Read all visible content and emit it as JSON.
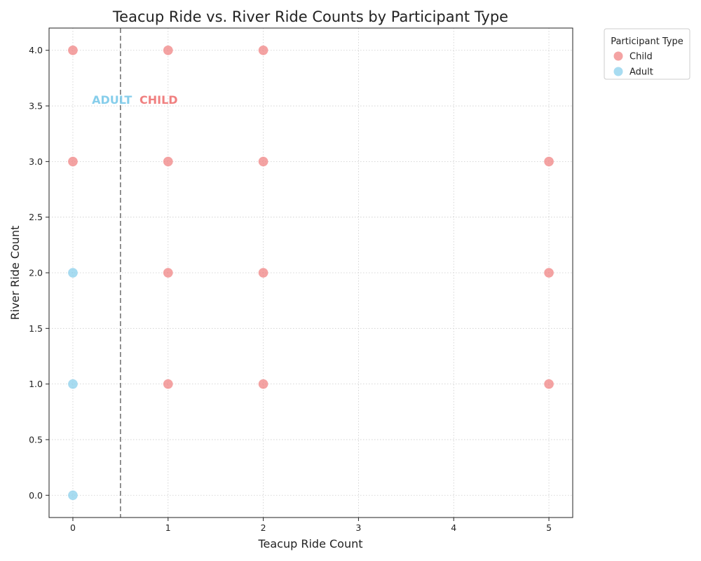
{
  "chart_data": {
    "type": "scatter",
    "title": "Teacup Ride vs. River Ride Counts by Participant Type",
    "xlabel": "Teacup Ride Count",
    "ylabel": "River Ride Count",
    "xlim": [
      -0.25,
      5.25
    ],
    "ylim": [
      -0.2,
      4.2
    ],
    "xticks": [
      0,
      1,
      2,
      3,
      4,
      5
    ],
    "xtick_labels": [
      "0",
      "1",
      "2",
      "3",
      "4",
      "5"
    ],
    "yticks": [
      0.0,
      0.5,
      1.0,
      1.5,
      2.0,
      2.5,
      3.0,
      3.5,
      4.0
    ],
    "ytick_labels": [
      "0.0",
      "0.5",
      "1.0",
      "1.5",
      "2.0",
      "2.5",
      "3.0",
      "3.5",
      "4.0"
    ],
    "grid": true,
    "legend": {
      "title": "Participant Type",
      "placement": "outside-top-right"
    },
    "divider": {
      "x": 0.5,
      "style": "dashed"
    },
    "annotations": [
      {
        "text": "ADULT",
        "x": 0.2,
        "y": 3.55,
        "series": "Adult"
      },
      {
        "text": "CHILD",
        "x": 0.7,
        "y": 3.55,
        "series": "Child"
      }
    ],
    "series": [
      {
        "name": "Child",
        "color": "#F08080",
        "points": [
          {
            "x": 0,
            "y": 4
          },
          {
            "x": 0,
            "y": 3
          },
          {
            "x": 1,
            "y": 4
          },
          {
            "x": 1,
            "y": 3
          },
          {
            "x": 1,
            "y": 2
          },
          {
            "x": 1,
            "y": 1
          },
          {
            "x": 2,
            "y": 4
          },
          {
            "x": 2,
            "y": 3
          },
          {
            "x": 2,
            "y": 2
          },
          {
            "x": 2,
            "y": 1
          },
          {
            "x": 5,
            "y": 3
          },
          {
            "x": 5,
            "y": 2
          },
          {
            "x": 5,
            "y": 1
          }
        ]
      },
      {
        "name": "Adult",
        "color": "#87CEEB",
        "points": [
          {
            "x": 0,
            "y": 2
          },
          {
            "x": 0,
            "y": 1
          },
          {
            "x": 0,
            "y": 0
          }
        ]
      }
    ]
  }
}
